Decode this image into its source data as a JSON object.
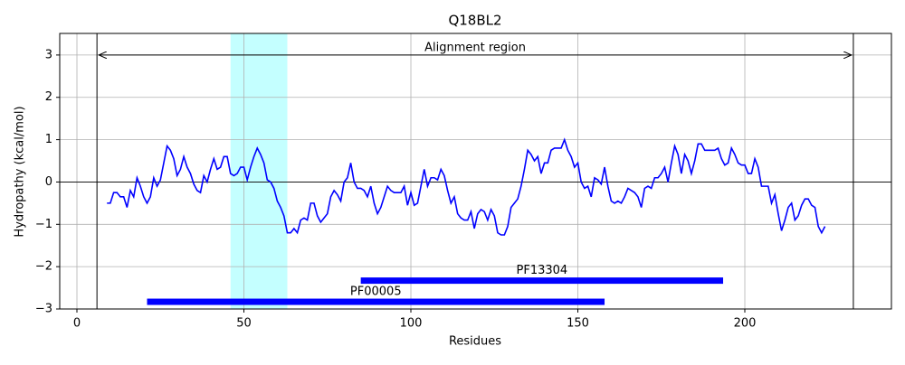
{
  "chart_data": {
    "type": "line",
    "title": "Q18BL2",
    "x_label": "Residues",
    "y_label": "Hydropathy (kcal/mol)",
    "xlim": [
      -5.15,
      243.9
    ],
    "ylim": [
      -3,
      3.51
    ],
    "xticks": [
      0,
      50,
      100,
      150,
      200
    ],
    "yticks": [
      {
        "value": -3,
        "label": "−3"
      },
      {
        "value": -2,
        "label": "−2"
      },
      {
        "value": -1,
        "label": "−1"
      },
      0,
      1,
      2,
      3
    ],
    "grid": true,
    "series": [
      {
        "color": "#0000ff",
        "x": [
          9,
          10,
          11,
          12,
          13,
          14,
          15,
          16,
          17,
          18,
          19,
          20,
          21,
          22,
          23,
          24,
          25,
          26,
          27,
          28,
          29,
          30,
          31,
          32,
          33,
          34,
          35,
          36,
          37,
          38,
          39,
          40,
          41,
          42,
          43,
          44,
          45,
          46,
          47,
          48,
          49,
          50,
          51,
          52,
          53,
          54,
          55,
          56,
          57,
          58,
          59,
          60,
          61,
          62,
          63,
          64,
          65,
          66,
          67,
          68,
          69,
          70,
          71,
          72,
          73,
          74,
          75,
          76,
          77,
          78,
          79,
          80,
          81,
          82,
          83,
          84,
          85,
          86,
          87,
          88,
          89,
          90,
          91,
          92,
          93,
          94,
          95,
          96,
          97,
          98,
          99,
          100,
          101,
          102,
          103,
          104,
          105,
          106,
          107,
          108,
          109,
          110,
          111,
          112,
          113,
          114,
          115,
          116,
          117,
          118,
          119,
          120,
          121,
          122,
          123,
          124,
          125,
          126,
          127,
          128,
          129,
          130,
          131,
          132,
          133,
          134,
          135,
          136,
          137,
          138,
          139,
          140,
          141,
          142,
          143,
          144,
          145,
          146,
          147,
          148,
          149,
          150,
          151,
          152,
          153,
          154,
          155,
          156,
          157,
          158,
          159,
          160,
          161,
          162,
          163,
          164,
          165,
          166,
          167,
          168,
          169,
          170,
          171,
          172,
          173,
          174,
          175,
          176,
          177,
          178,
          179,
          180,
          181,
          182,
          183,
          184,
          185,
          186,
          187,
          188,
          189,
          190,
          191,
          192,
          193,
          194,
          195,
          196,
          197,
          198,
          199,
          200,
          201,
          202,
          203,
          204,
          205,
          206,
          207,
          208,
          209,
          210,
          211,
          212,
          213,
          214,
          215,
          216,
          217,
          218,
          219,
          220,
          221,
          222,
          223,
          224
        ],
        "values": [
          -0.5,
          -0.5,
          -0.25,
          -0.25,
          -0.35,
          -0.35,
          -0.6,
          -0.2,
          -0.35,
          0.1,
          -0.1,
          -0.35,
          -0.5,
          -0.35,
          0.1,
          -0.1,
          0.05,
          0.45,
          0.85,
          0.75,
          0.55,
          0.15,
          0.3,
          0.6,
          0.35,
          0.2,
          -0.05,
          -0.2,
          -0.25,
          0.15,
          0.0,
          0.3,
          0.55,
          0.3,
          0.35,
          0.6,
          0.6,
          0.2,
          0.15,
          0.2,
          0.35,
          0.35,
          0.05,
          0.35,
          0.6,
          0.8,
          0.65,
          0.45,
          0.05,
          0.0,
          -0.15,
          -0.45,
          -0.6,
          -0.8,
          -1.2,
          -1.2,
          -1.1,
          -1.2,
          -0.9,
          -0.85,
          -0.9,
          -0.5,
          -0.5,
          -0.8,
          -0.95,
          -0.85,
          -0.75,
          -0.35,
          -0.2,
          -0.3,
          -0.45,
          0.0,
          0.1,
          0.45,
          0.0,
          -0.15,
          -0.15,
          -0.2,
          -0.35,
          -0.1,
          -0.5,
          -0.75,
          -0.6,
          -0.35,
          -0.1,
          -0.2,
          -0.25,
          -0.25,
          -0.25,
          -0.1,
          -0.55,
          -0.25,
          -0.55,
          -0.5,
          -0.1,
          0.3,
          -0.1,
          0.1,
          0.1,
          0.05,
          0.3,
          0.15,
          -0.2,
          -0.5,
          -0.35,
          -0.75,
          -0.85,
          -0.9,
          -0.9,
          -0.7,
          -1.1,
          -0.75,
          -0.65,
          -0.7,
          -0.9,
          -0.65,
          -0.8,
          -1.2,
          -1.25,
          -1.25,
          -1.05,
          -0.6,
          -0.5,
          -0.4,
          -0.1,
          0.3,
          0.75,
          0.65,
          0.5,
          0.6,
          0.2,
          0.45,
          0.45,
          0.75,
          0.8,
          0.8,
          0.8,
          1.0,
          0.75,
          0.6,
          0.35,
          0.45,
          0.0,
          -0.15,
          -0.1,
          -0.35,
          0.1,
          0.05,
          -0.05,
          0.35,
          -0.1,
          -0.45,
          -0.5,
          -0.45,
          -0.5,
          -0.35,
          -0.15,
          -0.2,
          -0.25,
          -0.35,
          -0.6,
          -0.15,
          -0.1,
          -0.15,
          0.1,
          0.1,
          0.2,
          0.35,
          0.0,
          0.45,
          0.85,
          0.65,
          0.2,
          0.65,
          0.5,
          0.2,
          0.5,
          0.9,
          0.9,
          0.75,
          0.75,
          0.75,
          0.75,
          0.8,
          0.55,
          0.4,
          0.45,
          0.8,
          0.65,
          0.45,
          0.4,
          0.4,
          0.2,
          0.2,
          0.55,
          0.35,
          -0.1,
          -0.1,
          -0.1,
          -0.5,
          -0.3,
          -0.75,
          -1.15,
          -0.9,
          -0.6,
          -0.5,
          -0.9,
          -0.8,
          -0.55,
          -0.4,
          -0.4,
          -0.55,
          -0.6,
          -1.05,
          -1.2,
          -1.05
        ]
      }
    ],
    "highlight": {
      "start": 46,
      "end": 63,
      "color": "#c4ffff"
    },
    "zero_line": 0,
    "region": {
      "label": "Alignment region",
      "start": 6,
      "end": 232.5,
      "y": 3.0
    },
    "domains": [
      {
        "label": "PF13304",
        "start": 85,
        "end": 193.5,
        "y": -2.33,
        "color": "#0000ff"
      },
      {
        "label": "PF00005",
        "start": 21,
        "end": 158,
        "y": -2.83,
        "color": "#0000ff"
      }
    ]
  }
}
